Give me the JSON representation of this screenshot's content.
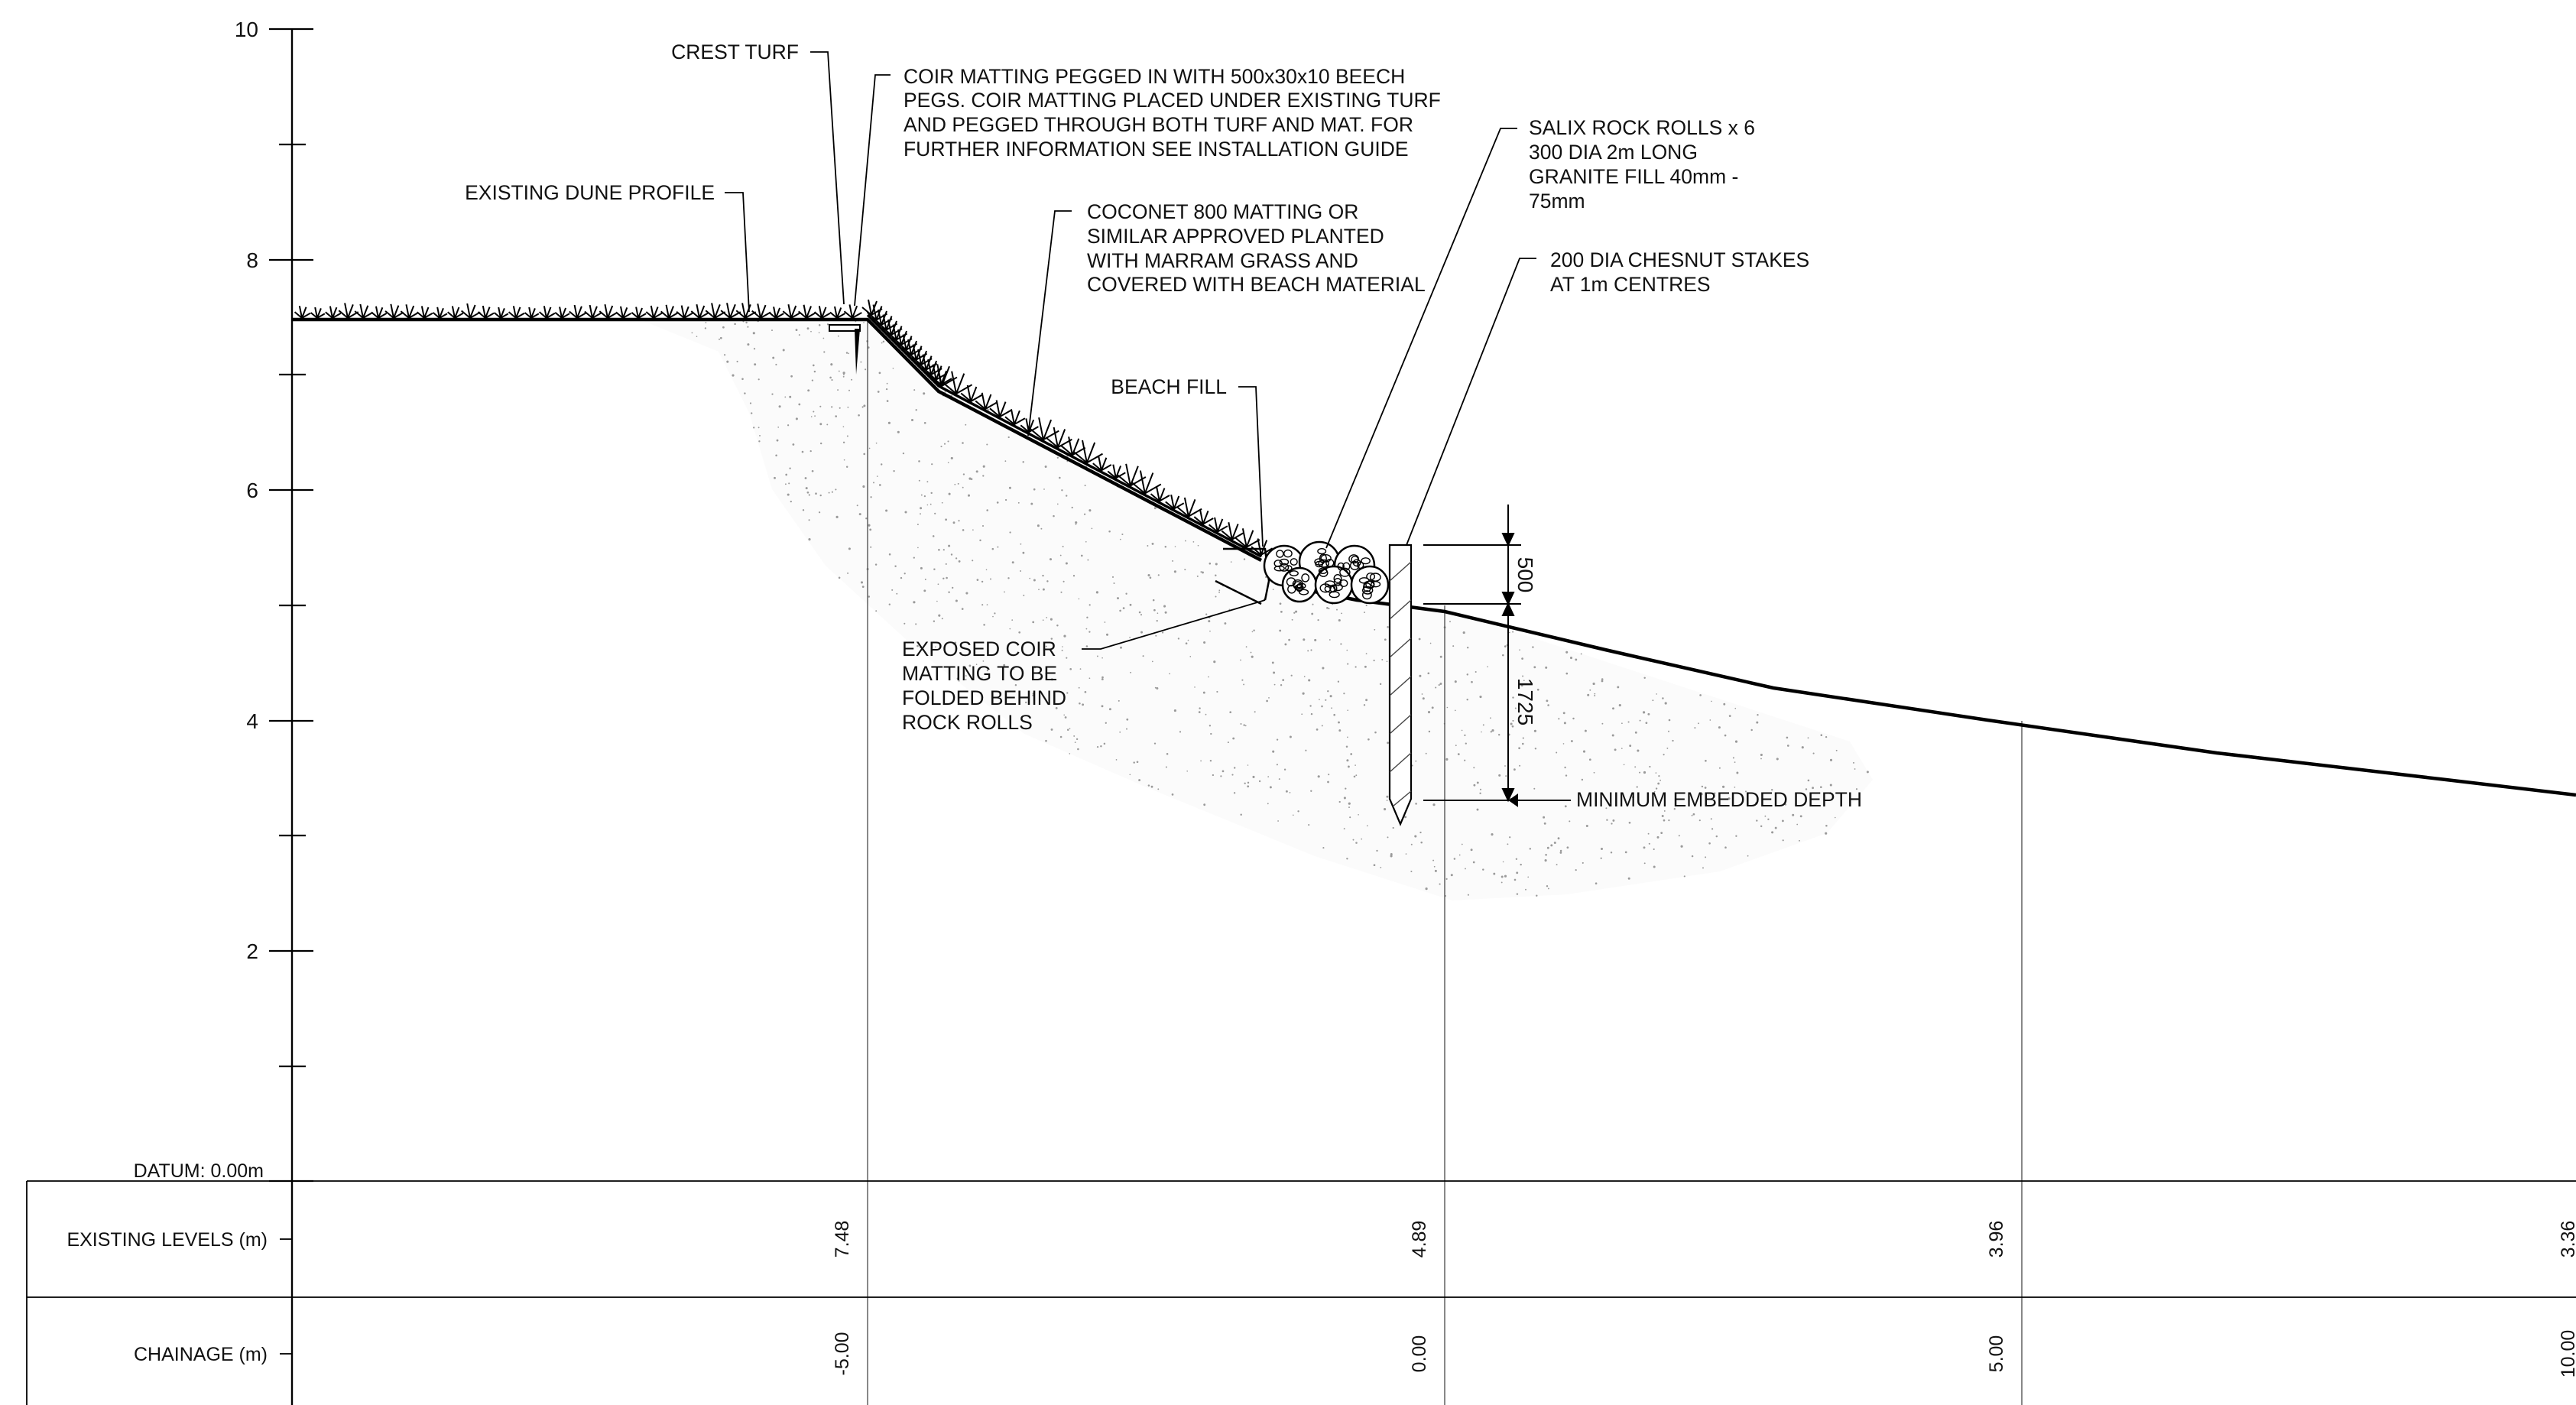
{
  "axis": {
    "ticks": [
      "10",
      "8",
      "6",
      "4",
      "2"
    ],
    "datum_label": "DATUM: 0.00m"
  },
  "labels": {
    "crest_turf": "CREST TURF",
    "coir_matting": [
      "COIR MATTING PEGGED IN WITH 500x30x10 BEECH",
      "PEGS. COIR MATTING PLACED UNDER EXISTING TURF",
      "AND PEGGED THROUGH BOTH TURF AND MAT. FOR",
      "FURTHER INFORMATION SEE INSTALLATION GUIDE"
    ],
    "existing_dune_profile": "EXISTING DUNE PROFILE",
    "coconet_matting": [
      "COCONET 800 MATTING OR",
      "SIMILAR APPROVED PLANTED",
      "WITH MARRAM GRASS AND",
      "COVERED WITH BEACH MATERIAL"
    ],
    "salix_rock_rolls": [
      "SALIX ROCK ROLLS x 6",
      "300 DIA 2m LONG",
      "GRANITE FILL 40mm -",
      "75mm"
    ],
    "chesnut_stakes": [
      "200 DIA CHESNUT STAKES",
      "AT 1m CENTRES"
    ],
    "beach_fill": "BEACH FILL",
    "exposed_coir": [
      "EXPOSED COIR",
      "MATTING TO BE",
      "FOLDED BEHIND",
      "ROCK ROLLS"
    ],
    "minimum_embedded_depth": "MINIMUM EMBEDDED DEPTH"
  },
  "dimensions": {
    "upper": "500",
    "lower": "1725"
  },
  "table": {
    "existing_levels_label": "EXISTING LEVELS (m)",
    "chainage_label": "CHAINAGE (m)",
    "existing_levels": [
      "7.48",
      "4.89",
      "3.96",
      "3.36"
    ],
    "chainage": [
      "-5.00",
      "0.00",
      "5.00",
      "10.00"
    ]
  }
}
